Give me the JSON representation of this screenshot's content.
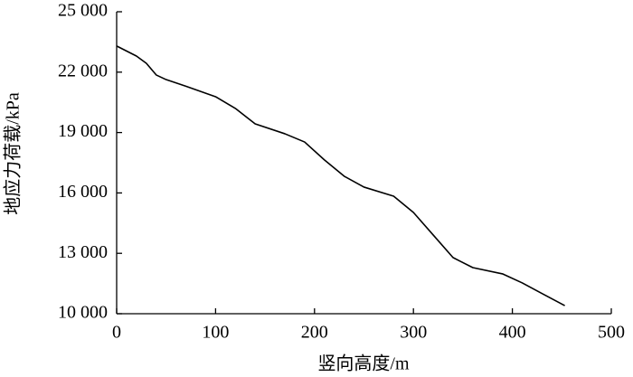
{
  "chart_data": {
    "type": "line",
    "x_label": "竖向高度/m",
    "y_label": "地应力荷载/kPa",
    "x": [
      0,
      20,
      30,
      40,
      50,
      70,
      100,
      120,
      140,
      170,
      190,
      210,
      230,
      250,
      280,
      300,
      320,
      340,
      360,
      390,
      410,
      430,
      453
    ],
    "series": [
      {
        "color": "#000000",
        "values": [
          23300,
          22800,
          22440,
          21860,
          21630,
          21300,
          20780,
          20200,
          19430,
          18940,
          18530,
          17640,
          16830,
          16290,
          15840,
          15030,
          13910,
          12790,
          12290,
          11980,
          11530,
          11000,
          10400
        ]
      }
    ],
    "xlim": [
      0,
      500
    ],
    "xticks": [
      0,
      100,
      200,
      300,
      400,
      500
    ],
    "ylim": [
      10000,
      25000
    ],
    "yticks": [
      {
        "value": 10000,
        "label": "10 000"
      },
      {
        "value": 13000,
        "label": "13 000"
      },
      {
        "value": 16000,
        "label": "16 000"
      },
      {
        "value": 19000,
        "label": "19 000"
      },
      {
        "value": 22000,
        "label": "22 000"
      },
      {
        "value": 25000,
        "label": "25 000"
      }
    ],
    "grid": false
  }
}
